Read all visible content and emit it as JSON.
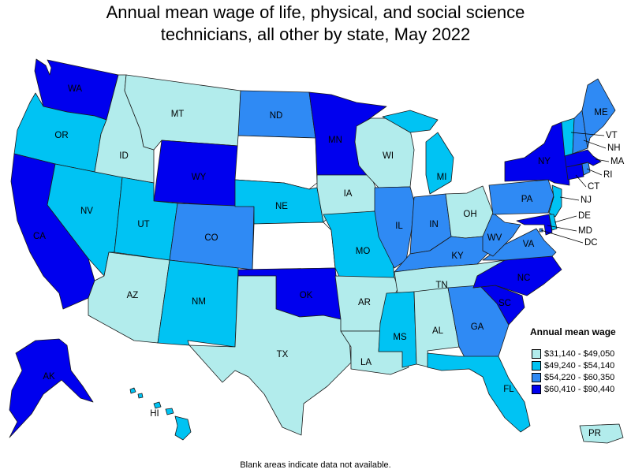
{
  "title_lines": [
    "Annual mean wage of life, physical, and social science",
    "technicians, all other by state, May 2022"
  ],
  "legend": {
    "title": "Annual mean wage",
    "items": [
      {
        "label": "$31,140 - $49,050",
        "color": "#b2ecec"
      },
      {
        "label": "$49,240 - $54,140",
        "color": "#00c3f3"
      },
      {
        "label": "$54,220 - $60,350",
        "color": "#2f8af4"
      },
      {
        "label": "$60,410 - $90,440",
        "color": "#0000ee"
      }
    ]
  },
  "footnote": "Blank areas indicate data not available.",
  "states": {
    "WA": 3,
    "OR": 1,
    "CA": 3,
    "NV": 1,
    "ID": 0,
    "MT": 0,
    "WY": 3,
    "UT": 1,
    "AZ": 0,
    "CO": 2,
    "NM": 1,
    "ND": 2,
    "SD": -1,
    "NE": 1,
    "KS": -1,
    "OK": 3,
    "TX": 0,
    "MN": 3,
    "IA": 0,
    "MO": 1,
    "AR": 0,
    "LA": 0,
    "WI": 0,
    "IL": 2,
    "MI": 1,
    "IN": 2,
    "OH": 0,
    "KY": 2,
    "TN": 0,
    "MS": 1,
    "AL": 0,
    "GA": 2,
    "FL": 1,
    "SC": 3,
    "NC": 3,
    "VA": 2,
    "WV": 2,
    "PA": 2,
    "NY": 3,
    "ME": 2,
    "VT": 1,
    "NH": 2,
    "MA": 3,
    "RI": 2,
    "CT": 3,
    "NJ": 1,
    "DE": 1,
    "MD": 3,
    "DC": 2,
    "AK": 3,
    "HI": 1,
    "PR": 0
  },
  "labels": {
    "WA": "WA",
    "OR": "OR",
    "CA": "CA",
    "NV": "NV",
    "ID": "ID",
    "MT": "MT",
    "WY": "WY",
    "UT": "UT",
    "AZ": "AZ",
    "CO": "CO",
    "NM": "NM",
    "ND": "ND",
    "NE": "NE",
    "OK": "OK",
    "TX": "TX",
    "MN": "MN",
    "IA": "IA",
    "MO": "MO",
    "AR": "AR",
    "LA": "LA",
    "WI": "WI",
    "IL": "IL",
    "MI": "MI",
    "IN": "IN",
    "OH": "OH",
    "KY": "KY",
    "TN": "TN",
    "MS": "MS",
    "AL": "AL",
    "GA": "GA",
    "FL": "FL",
    "SC": "SC",
    "NC": "NC",
    "VA": "VA",
    "WV": "WV",
    "PA": "PA",
    "NY": "NY",
    "ME": "ME",
    "VT": "VT",
    "NH": "NH",
    "MA": "MA",
    "RI": "RI",
    "CT": "CT",
    "NJ": "NJ",
    "DE": "DE",
    "MD": "MD",
    "DC": "DC",
    "AK": "AK",
    "HI": "HI",
    "PR": "PR"
  }
}
